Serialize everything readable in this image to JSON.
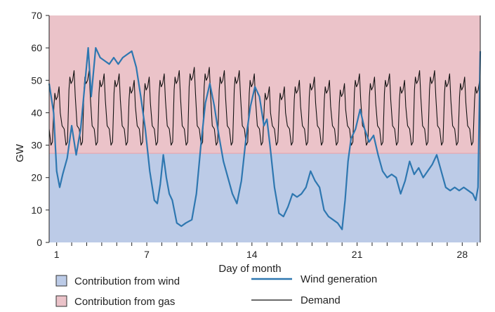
{
  "chart_data": {
    "type": "area",
    "title": "",
    "xlabel": "Day of month",
    "ylabel": "GW",
    "xlim": [
      0.5,
      29.2
    ],
    "ylim": [
      0,
      70
    ],
    "yticks": [
      0,
      10,
      20,
      30,
      40,
      50,
      60,
      70
    ],
    "xticks": [
      1,
      7,
      14,
      21,
      28
    ],
    "threshold_gw": 27.5,
    "colors": {
      "wind_area": "#bccbe7",
      "gas_area": "#ebc3c9",
      "wind_line": "#2e77b0",
      "demand_line": "#111111",
      "threshold_line": "#e8a0a8"
    },
    "legend": [
      {
        "label": "Contribution from wind",
        "kind": "box",
        "color": "#bccbe7"
      },
      {
        "label": "Contribution from gas",
        "kind": "box",
        "color": "#ebc3c9"
      },
      {
        "label": "Wind generation",
        "kind": "line",
        "color": "#2e77b0"
      },
      {
        "label": "Demand",
        "kind": "line",
        "color": "#111111"
      }
    ],
    "demand_pattern": {
      "baseline_gw": [
        35,
        30
      ],
      "daily_peak_gw": [
        48,
        53,
        53,
        52,
        52,
        50,
        51,
        52,
        53,
        54,
        54,
        53,
        53,
        52,
        48,
        48,
        50,
        51,
        50,
        49,
        52,
        51,
        52,
        50,
        53,
        53,
        52,
        51,
        50
      ]
    },
    "wind_series": {
      "name": "Wind generation",
      "x": [
        0.5,
        0.8,
        1.0,
        1.2,
        1.4,
        1.7,
        2.0,
        2.3,
        2.6,
        2.8,
        3.0,
        3.1,
        3.3,
        3.6,
        3.9,
        4.2,
        4.5,
        4.8,
        5.1,
        5.4,
        5.7,
        6.0,
        6.3,
        6.6,
        6.9,
        7.2,
        7.5,
        7.7,
        7.9,
        8.1,
        8.3,
        8.5,
        8.7,
        9.0,
        9.3,
        9.6,
        10.0,
        10.3,
        10.6,
        10.9,
        11.2,
        11.5,
        11.8,
        12.1,
        12.4,
        12.7,
        13.0,
        13.3,
        13.6,
        13.9,
        14.2,
        14.5,
        14.8,
        15.0,
        15.2,
        15.5,
        15.8,
        16.1,
        16.4,
        16.7,
        17.0,
        17.3,
        17.6,
        17.9,
        18.2,
        18.5,
        18.8,
        19.1,
        19.4,
        19.7,
        20.0,
        20.2,
        20.4,
        20.6,
        20.9,
        21.2,
        21.5,
        21.8,
        22.1,
        22.4,
        22.7,
        23.0,
        23.3,
        23.6,
        23.9,
        24.2,
        24.5,
        24.8,
        25.1,
        25.4,
        25.7,
        26.0,
        26.3,
        26.6,
        26.9,
        27.2,
        27.5,
        27.8,
        28.1,
        28.4,
        28.7,
        28.9,
        29.05,
        29.2
      ],
      "values": [
        49,
        40,
        22,
        17,
        21,
        26,
        36,
        27,
        35,
        45,
        55,
        60,
        45,
        60,
        57,
        56,
        55,
        57,
        55,
        57,
        58,
        59,
        54,
        45,
        35,
        22,
        13,
        12,
        18,
        27,
        20,
        15,
        13,
        6,
        5,
        6,
        7,
        15,
        30,
        43,
        49,
        42,
        33,
        25,
        20,
        15,
        12,
        19,
        32,
        42,
        48,
        45,
        36,
        38,
        30,
        17,
        9,
        8,
        11,
        15,
        14,
        15,
        17,
        22,
        19,
        17,
        10,
        8,
        7,
        6,
        4,
        13,
        25,
        32,
        35,
        41,
        35,
        31,
        33,
        27,
        22,
        20,
        21,
        20,
        15,
        19,
        25,
        21,
        23,
        20,
        22,
        24,
        27,
        22,
        17,
        16,
        17,
        16,
        17,
        16,
        15,
        13,
        17,
        59
      ]
    }
  }
}
